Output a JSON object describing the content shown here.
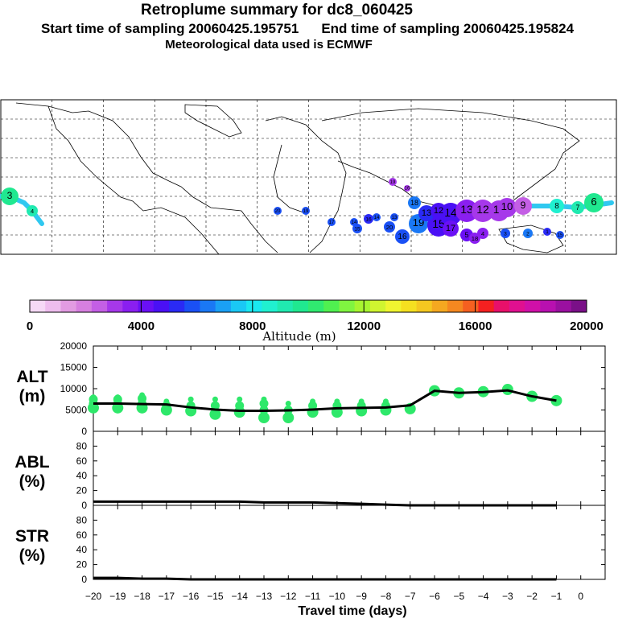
{
  "header": {
    "title": "Retroplume summary for dc8_060425",
    "start_label": "Start time of sampling 20060425.195751",
    "end_label": "End time of sampling 20060425.195824",
    "met_label": "Meteorological data used is ECMWF"
  },
  "map": {
    "point_labels": [
      "3",
      "4",
      "20",
      "19",
      "17",
      "15",
      "16",
      "14",
      "13",
      "18",
      "19",
      "20",
      "16",
      "15",
      "14",
      "13",
      "12",
      "11",
      "10",
      "9",
      "8",
      "7",
      "6",
      "5",
      "4",
      "3",
      "2",
      "1",
      "15",
      "17",
      "18",
      "19",
      "16",
      "14",
      "13",
      "12"
    ],
    "colors": {
      "land": "#ffffff",
      "coast": "#000000",
      "grid": "#000000"
    }
  },
  "colorbar": {
    "ticks": [
      "0",
      "4000",
      "8000",
      "12000",
      "16000",
      "20000"
    ],
    "label": "Altitude (m)",
    "colors": [
      "#f6d9f6",
      "#eebdee",
      "#e29be2",
      "#d67fdf",
      "#c45fe5",
      "#a638ea",
      "#8a1ff0",
      "#6a10f5",
      "#4a10f5",
      "#2a2af5",
      "#1a50f5",
      "#1a78f5",
      "#1aa0f5",
      "#1ac8f5",
      "#1ae8f0",
      "#20f0d0",
      "#20eab0",
      "#20e890",
      "#30ea70",
      "#50f050",
      "#80f540",
      "#a8f530",
      "#d0f530",
      "#f0f530",
      "#f5e020",
      "#f5c820",
      "#f5a820",
      "#f58820",
      "#f56020",
      "#f52020",
      "#e8106a",
      "#e01090",
      "#d010a8",
      "#b810b0",
      "#9a10a0",
      "#7a1088"
    ]
  },
  "chart_data": [
    {
      "type": "line",
      "panel": "ALT",
      "ylabel": "ALT",
      "yunit": "(m)",
      "ylim": [
        0,
        20000
      ],
      "yticks": [
        "20000",
        "15000",
        "10000",
        "5000",
        "0"
      ],
      "x": [
        -20,
        -19,
        -18,
        -17,
        -16,
        -15,
        -14,
        -13,
        -12,
        -11,
        -10,
        -9,
        -8,
        -7,
        -6,
        -5,
        -4,
        -3,
        -2,
        -1
      ],
      "values": [
        6500,
        6500,
        6400,
        6300,
        5600,
        5100,
        4800,
        4800,
        4900,
        5100,
        5400,
        5500,
        5600,
        6100,
        9500,
        9000,
        9200,
        9600,
        8200,
        7200
      ],
      "scatter": [
        {
          "x": -20,
          "y": [
            5500,
            6500,
            7500,
            8000
          ]
        },
        {
          "x": -19,
          "y": [
            5500,
            6500,
            7500,
            8000
          ]
        },
        {
          "x": -18,
          "y": [
            5500,
            6500,
            7700,
            8500
          ]
        },
        {
          "x": -17,
          "y": [
            5000,
            6000,
            7000
          ]
        },
        {
          "x": -16,
          "y": [
            4800,
            6000,
            7500
          ]
        },
        {
          "x": -15,
          "y": [
            4000,
            6000,
            7500
          ]
        },
        {
          "x": -14,
          "y": [
            4500,
            6000,
            7500
          ]
        },
        {
          "x": -13,
          "y": [
            3200,
            5000,
            6500,
            7500
          ]
        },
        {
          "x": -12,
          "y": [
            3200,
            5000,
            6500
          ]
        },
        {
          "x": -11,
          "y": [
            4500,
            6000,
            7000
          ]
        },
        {
          "x": -10,
          "y": [
            4500,
            6000,
            7000
          ]
        },
        {
          "x": -9,
          "y": [
            4800,
            6000,
            7000
          ]
        },
        {
          "x": -8,
          "y": [
            5000,
            6000,
            7000
          ]
        },
        {
          "x": -7,
          "y": [
            5300,
            6000
          ]
        },
        {
          "x": -6,
          "y": [
            9500
          ]
        },
        {
          "x": -5,
          "y": [
            9000
          ]
        },
        {
          "x": -4,
          "y": [
            9300
          ]
        },
        {
          "x": -3,
          "y": [
            9800
          ]
        },
        {
          "x": -2,
          "y": [
            8200
          ]
        },
        {
          "x": -1,
          "y": [
            7200
          ]
        }
      ]
    },
    {
      "type": "line",
      "panel": "ABL",
      "ylabel": "ABL",
      "yunit": "(%)",
      "ylim": [
        0,
        100
      ],
      "yticks": [
        "80",
        "60",
        "40",
        "20",
        "0"
      ],
      "x": [
        -20,
        -19,
        -18,
        -17,
        -16,
        -15,
        -14,
        -13,
        -12,
        -11,
        -10,
        -9,
        -8,
        -7,
        -6,
        -5,
        -4,
        -3,
        -2,
        -1
      ],
      "values": [
        5,
        5,
        5,
        5,
        5,
        5,
        5,
        4,
        4,
        4,
        3,
        2,
        1,
        0,
        0,
        0,
        0,
        0,
        0,
        0
      ]
    },
    {
      "type": "line",
      "panel": "STR",
      "ylabel": "STR",
      "yunit": "(%)",
      "ylim": [
        0,
        100
      ],
      "yticks": [
        "80",
        "60",
        "40",
        "20",
        "0"
      ],
      "x": [
        -20,
        -19,
        -18,
        -17,
        -16,
        -15,
        -14,
        -13,
        -12,
        -11,
        -10,
        -9,
        -8,
        -7,
        -6,
        -5,
        -4,
        -3,
        -2,
        -1
      ],
      "values": [
        2,
        2,
        1,
        1,
        0,
        0,
        0,
        0,
        0,
        0,
        0,
        0,
        0,
        0,
        0,
        0,
        0,
        0,
        0,
        0
      ]
    }
  ],
  "xaxis": {
    "label": "Travel time (days)",
    "ticks": [
      "−20",
      "−19",
      "−18",
      "−17",
      "−16",
      "−15",
      "−14",
      "−13",
      "−12",
      "−11",
      "−10",
      "−9",
      "−8",
      "−7",
      "−6",
      "−5",
      "−4",
      "−3",
      "−2",
      "−1",
      "0"
    ]
  }
}
